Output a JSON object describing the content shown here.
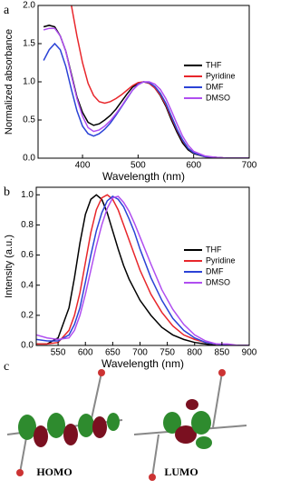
{
  "chart_data": [
    {
      "type": "line",
      "panel_label": "a",
      "x_label": "Wavelength (nm)",
      "y_label": "Normalized absorbance",
      "xlim": [
        320,
        700
      ],
      "xticks": [
        400,
        500,
        600,
        700
      ],
      "ylim": [
        0,
        2
      ],
      "yticks": [
        {
          "value": 0,
          "label": "0.0"
        },
        0.5,
        {
          "value": 1,
          "label": "1.0"
        },
        1.5,
        {
          "value": 2,
          "label": "2.0"
        }
      ],
      "legend": "right",
      "x": [
        330,
        340,
        350,
        360,
        370,
        380,
        390,
        400,
        410,
        420,
        430,
        440,
        450,
        460,
        470,
        480,
        490,
        500,
        510,
        520,
        530,
        540,
        550,
        560,
        570,
        580,
        590,
        600,
        620,
        640,
        660,
        680,
        700
      ],
      "series": [
        {
          "name": "THF",
          "color": "#000000",
          "values": [
            1.72,
            1.74,
            1.72,
            1.6,
            1.4,
            1.1,
            0.8,
            0.6,
            0.47,
            0.43,
            0.45,
            0.5,
            0.56,
            0.64,
            0.74,
            0.84,
            0.93,
            0.98,
            1.0,
            0.98,
            0.92,
            0.82,
            0.68,
            0.5,
            0.34,
            0.2,
            0.11,
            0.06,
            0.02,
            0.01,
            0,
            0,
            0
          ]
        },
        {
          "name": "Pyridine",
          "color": "#e8262b",
          "values": [
            null,
            null,
            null,
            null,
            null,
            2.0,
            1.6,
            1.25,
            0.98,
            0.82,
            0.74,
            0.72,
            0.74,
            0.78,
            0.83,
            0.89,
            0.95,
            0.99,
            1.0,
            0.98,
            0.92,
            0.83,
            0.7,
            0.53,
            0.37,
            0.23,
            0.13,
            0.07,
            0.02,
            0.01,
            0,
            0,
            0
          ]
        },
        {
          "name": "DMF",
          "color": "#2b43d6",
          "values": [
            1.28,
            1.42,
            1.5,
            1.42,
            1.2,
            0.9,
            0.62,
            0.42,
            0.32,
            0.29,
            0.32,
            0.38,
            0.46,
            0.56,
            0.67,
            0.78,
            0.89,
            0.97,
            1.0,
            0.99,
            0.94,
            0.85,
            0.72,
            0.55,
            0.38,
            0.24,
            0.13,
            0.07,
            0.02,
            0.01,
            0,
            0,
            0
          ]
        },
        {
          "name": "DMSO",
          "color": "#b04ef0",
          "values": [
            1.68,
            1.7,
            1.7,
            1.6,
            1.4,
            1.08,
            0.78,
            0.55,
            0.4,
            0.35,
            0.37,
            0.42,
            0.49,
            0.58,
            0.68,
            0.79,
            0.89,
            0.96,
            1.0,
            1.0,
            0.97,
            0.9,
            0.78,
            0.62,
            0.45,
            0.29,
            0.17,
            0.09,
            0.03,
            0.01,
            0,
            0,
            0
          ]
        }
      ]
    },
    {
      "type": "line",
      "panel_label": "b",
      "x_label": "Wavelength (nm)",
      "y_label": "Intensity (a.u.)",
      "xlim": [
        510,
        900
      ],
      "xticks": [
        550,
        600,
        650,
        700,
        750,
        800,
        850,
        900
      ],
      "ylim": [
        0,
        1.05
      ],
      "yticks": [
        {
          "value": 0,
          "label": "0.0"
        },
        0.2,
        0.4,
        0.6,
        0.8,
        {
          "value": 1,
          "label": "1.0"
        }
      ],
      "legend": "right",
      "x": [
        510,
        530,
        550,
        570,
        580,
        590,
        600,
        610,
        620,
        630,
        640,
        650,
        660,
        670,
        680,
        690,
        700,
        720,
        740,
        760,
        780,
        800,
        820,
        840,
        860,
        880,
        900
      ],
      "series": [
        {
          "name": "THF",
          "color": "#000000",
          "values": [
            0.01,
            0.01,
            0.05,
            0.25,
            0.45,
            0.68,
            0.87,
            0.97,
            1.0,
            0.97,
            0.88,
            0.76,
            0.64,
            0.53,
            0.44,
            0.37,
            0.3,
            0.2,
            0.12,
            0.07,
            0.04,
            0.02,
            0.01,
            0,
            0,
            0,
            0
          ]
        },
        {
          "name": "Pyridine",
          "color": "#e8262b",
          "values": [
            0.01,
            0.01,
            0.02,
            0.1,
            0.2,
            0.35,
            0.55,
            0.75,
            0.9,
            0.98,
            1.0,
            0.97,
            0.9,
            0.8,
            0.7,
            0.6,
            0.5,
            0.34,
            0.22,
            0.13,
            0.07,
            0.04,
            0.02,
            0.01,
            0,
            0,
            0
          ]
        },
        {
          "name": "DMF",
          "color": "#2b43d6",
          "values": [
            0.04,
            0.03,
            0.03,
            0.07,
            0.14,
            0.25,
            0.42,
            0.6,
            0.76,
            0.88,
            0.96,
            0.99,
            0.97,
            0.92,
            0.84,
            0.75,
            0.64,
            0.45,
            0.3,
            0.18,
            0.1,
            0.05,
            0.02,
            0.01,
            0,
            0,
            0
          ]
        },
        {
          "name": "DMSO",
          "color": "#b04ef0",
          "values": [
            0.07,
            0.05,
            0.04,
            0.05,
            0.1,
            0.2,
            0.34,
            0.5,
            0.66,
            0.8,
            0.91,
            0.98,
            0.99,
            0.95,
            0.89,
            0.81,
            0.72,
            0.54,
            0.37,
            0.24,
            0.14,
            0.07,
            0.03,
            0.01,
            0.01,
            0,
            0
          ]
        }
      ]
    }
  ],
  "panel_c": {
    "label": "c",
    "captions": [
      "HOMO",
      "LUMO"
    ]
  }
}
